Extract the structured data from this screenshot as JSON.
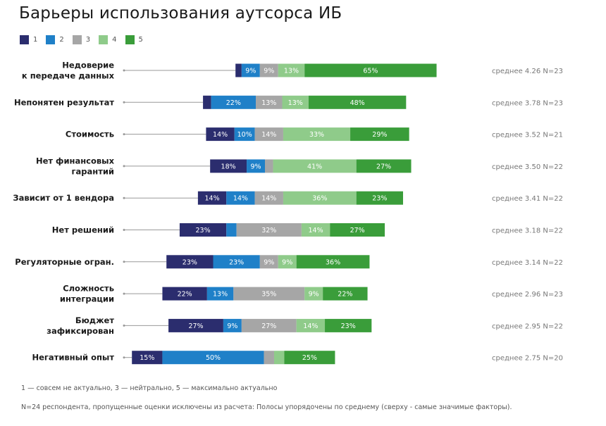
{
  "title": "Барьеры использования аутсорса ИБ",
  "legend": [
    {
      "label": "1",
      "color": "#2b2d6e"
    },
    {
      "label": "2",
      "color": "#1f80c8"
    },
    {
      "label": "3",
      "color": "#a6a6a6"
    },
    {
      "label": "4",
      "color": "#8fcb8a"
    },
    {
      "label": "5",
      "color": "#3a9d3a"
    }
  ],
  "chart_data": {
    "type": "bar",
    "orientation": "horizontal",
    "stacked": true,
    "diverging": true,
    "xlim": [
      -70,
      100
    ],
    "series_names": [
      "1",
      "2",
      "3",
      "4",
      "5"
    ],
    "categories": [
      {
        "label": [
          "Недоверие",
          "к передаче данных"
        ],
        "values": [
          3,
          9,
          9,
          13,
          65
        ],
        "labels": [
          "",
          "9%",
          "9%",
          "13%",
          "65%"
        ],
        "summary": "среднее 4.26 N=23"
      },
      {
        "label": [
          "Непонятен результат"
        ],
        "values": [
          4,
          22,
          13,
          13,
          48
        ],
        "labels": [
          "",
          "22%",
          "13%",
          "13%",
          "48%"
        ],
        "summary": "среднее 3.78 N=23"
      },
      {
        "label": [
          "Стоимость"
        ],
        "values": [
          14,
          10,
          14,
          33,
          29
        ],
        "labels": [
          "14%",
          "10%",
          "14%",
          "33%",
          "29%"
        ],
        "summary": "среднее 3.52 N=21"
      },
      {
        "label": [
          "Нет финансовых",
          "гарантий"
        ],
        "values": [
          18,
          9,
          4,
          41,
          27
        ],
        "labels": [
          "18%",
          "9%",
          "",
          "41%",
          "27%"
        ],
        "summary": "среднее 3.50 N=22"
      },
      {
        "label": [
          "Зависит от 1 вендора"
        ],
        "values": [
          14,
          14,
          14,
          36,
          23
        ],
        "labels": [
          "14%",
          "14%",
          "14%",
          "36%",
          "23%"
        ],
        "summary": "среднее 3.41 N=22"
      },
      {
        "label": [
          "Нет решений"
        ],
        "values": [
          23,
          5,
          32,
          14,
          27
        ],
        "labels": [
          "23%",
          "",
          "32%",
          "14%",
          "27%"
        ],
        "summary": "среднее 3.18 N=22"
      },
      {
        "label": [
          "Регуляторные огран."
        ],
        "values": [
          23,
          23,
          9,
          9,
          36
        ],
        "labels": [
          "23%",
          "23%",
          "9%",
          "9%",
          "36%"
        ],
        "summary": "среднее 3.14 N=22"
      },
      {
        "label": [
          "Сложность",
          "интеграции"
        ],
        "values": [
          22,
          13,
          35,
          9,
          22
        ],
        "labels": [
          "22%",
          "13%",
          "35%",
          "9%",
          "22%"
        ],
        "summary": "среднее 2.96 N=23"
      },
      {
        "label": [
          "Бюджет",
          "зафиксирован"
        ],
        "values": [
          27,
          9,
          27,
          14,
          23
        ],
        "labels": [
          "27%",
          "9%",
          "27%",
          "14%",
          "23%"
        ],
        "summary": "среднее 2.95 N=22"
      },
      {
        "label": [
          "Негативный опыт"
        ],
        "values": [
          15,
          50,
          5,
          5,
          25
        ],
        "labels": [
          "15%",
          "50%",
          "",
          "",
          "25%"
        ],
        "summary": "среднее 2.75 N=20"
      }
    ]
  },
  "footnotes": {
    "scale": "1 — совсем не актуально, 3 — нейтрально,  5 — максимально актуально",
    "method": "N=24 респондента, пропущенные оценки исключены из расчета: Полосы упорядочены по среднему (сверху - самые значимые факторы)."
  }
}
